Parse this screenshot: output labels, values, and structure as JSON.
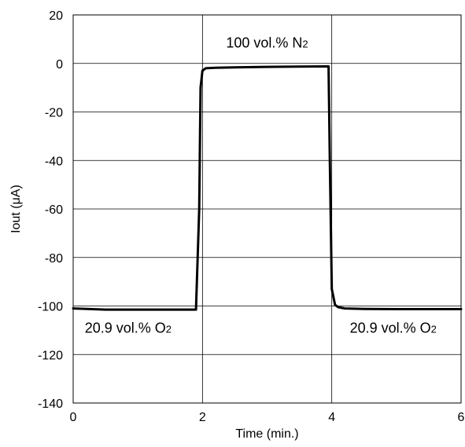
{
  "chart_data": {
    "type": "line",
    "xlabel": "Time (min.)",
    "ylabel": "Iout (μA)",
    "xlim": [
      0,
      6
    ],
    "ylim": [
      -140,
      20
    ],
    "xticks": [
      0,
      2,
      4,
      6
    ],
    "yticks": [
      20,
      0,
      -20,
      -40,
      -60,
      -80,
      -100,
      -120,
      -140
    ],
    "x_tick_labels": [
      "0",
      "2",
      "4",
      "6"
    ],
    "y_tick_labels": [
      "20",
      "0",
      "-20",
      "-40",
      "-60",
      "-80",
      "-100",
      "-120",
      "-140"
    ],
    "grid": "vertical-and-horizontal",
    "legend": "none",
    "line_color": "#000000",
    "series": [
      {
        "x": [
          0,
          0.5,
          1.0,
          1.5,
          1.9,
          1.95,
          1.97,
          2.0,
          2.05,
          2.2,
          2.5,
          3.0,
          3.5,
          3.95,
          3.97,
          4.0,
          4.05,
          4.1,
          4.2,
          4.5,
          5.0,
          5.5,
          6.0
        ],
        "y": [
          -101,
          -101.5,
          -101.5,
          -101.5,
          -101.5,
          -60,
          -10,
          -3,
          -2,
          -1.8,
          -1.6,
          -1.4,
          -1.3,
          -1.2,
          -40,
          -93,
          -99.5,
          -100.5,
          -101,
          -101.2,
          -101.3,
          -101.3,
          -101.3
        ]
      }
    ],
    "annotations": [
      {
        "text": "100 vol.% N",
        "subscript": "2",
        "x": 3.0,
        "y": 6.5
      },
      {
        "text": "20.9 vol.% O",
        "subscript": "2",
        "x": 0.85,
        "y": -111
      },
      {
        "text": "20.9 vol.% O",
        "subscript": "2",
        "x": 4.95,
        "y": -111
      }
    ]
  }
}
